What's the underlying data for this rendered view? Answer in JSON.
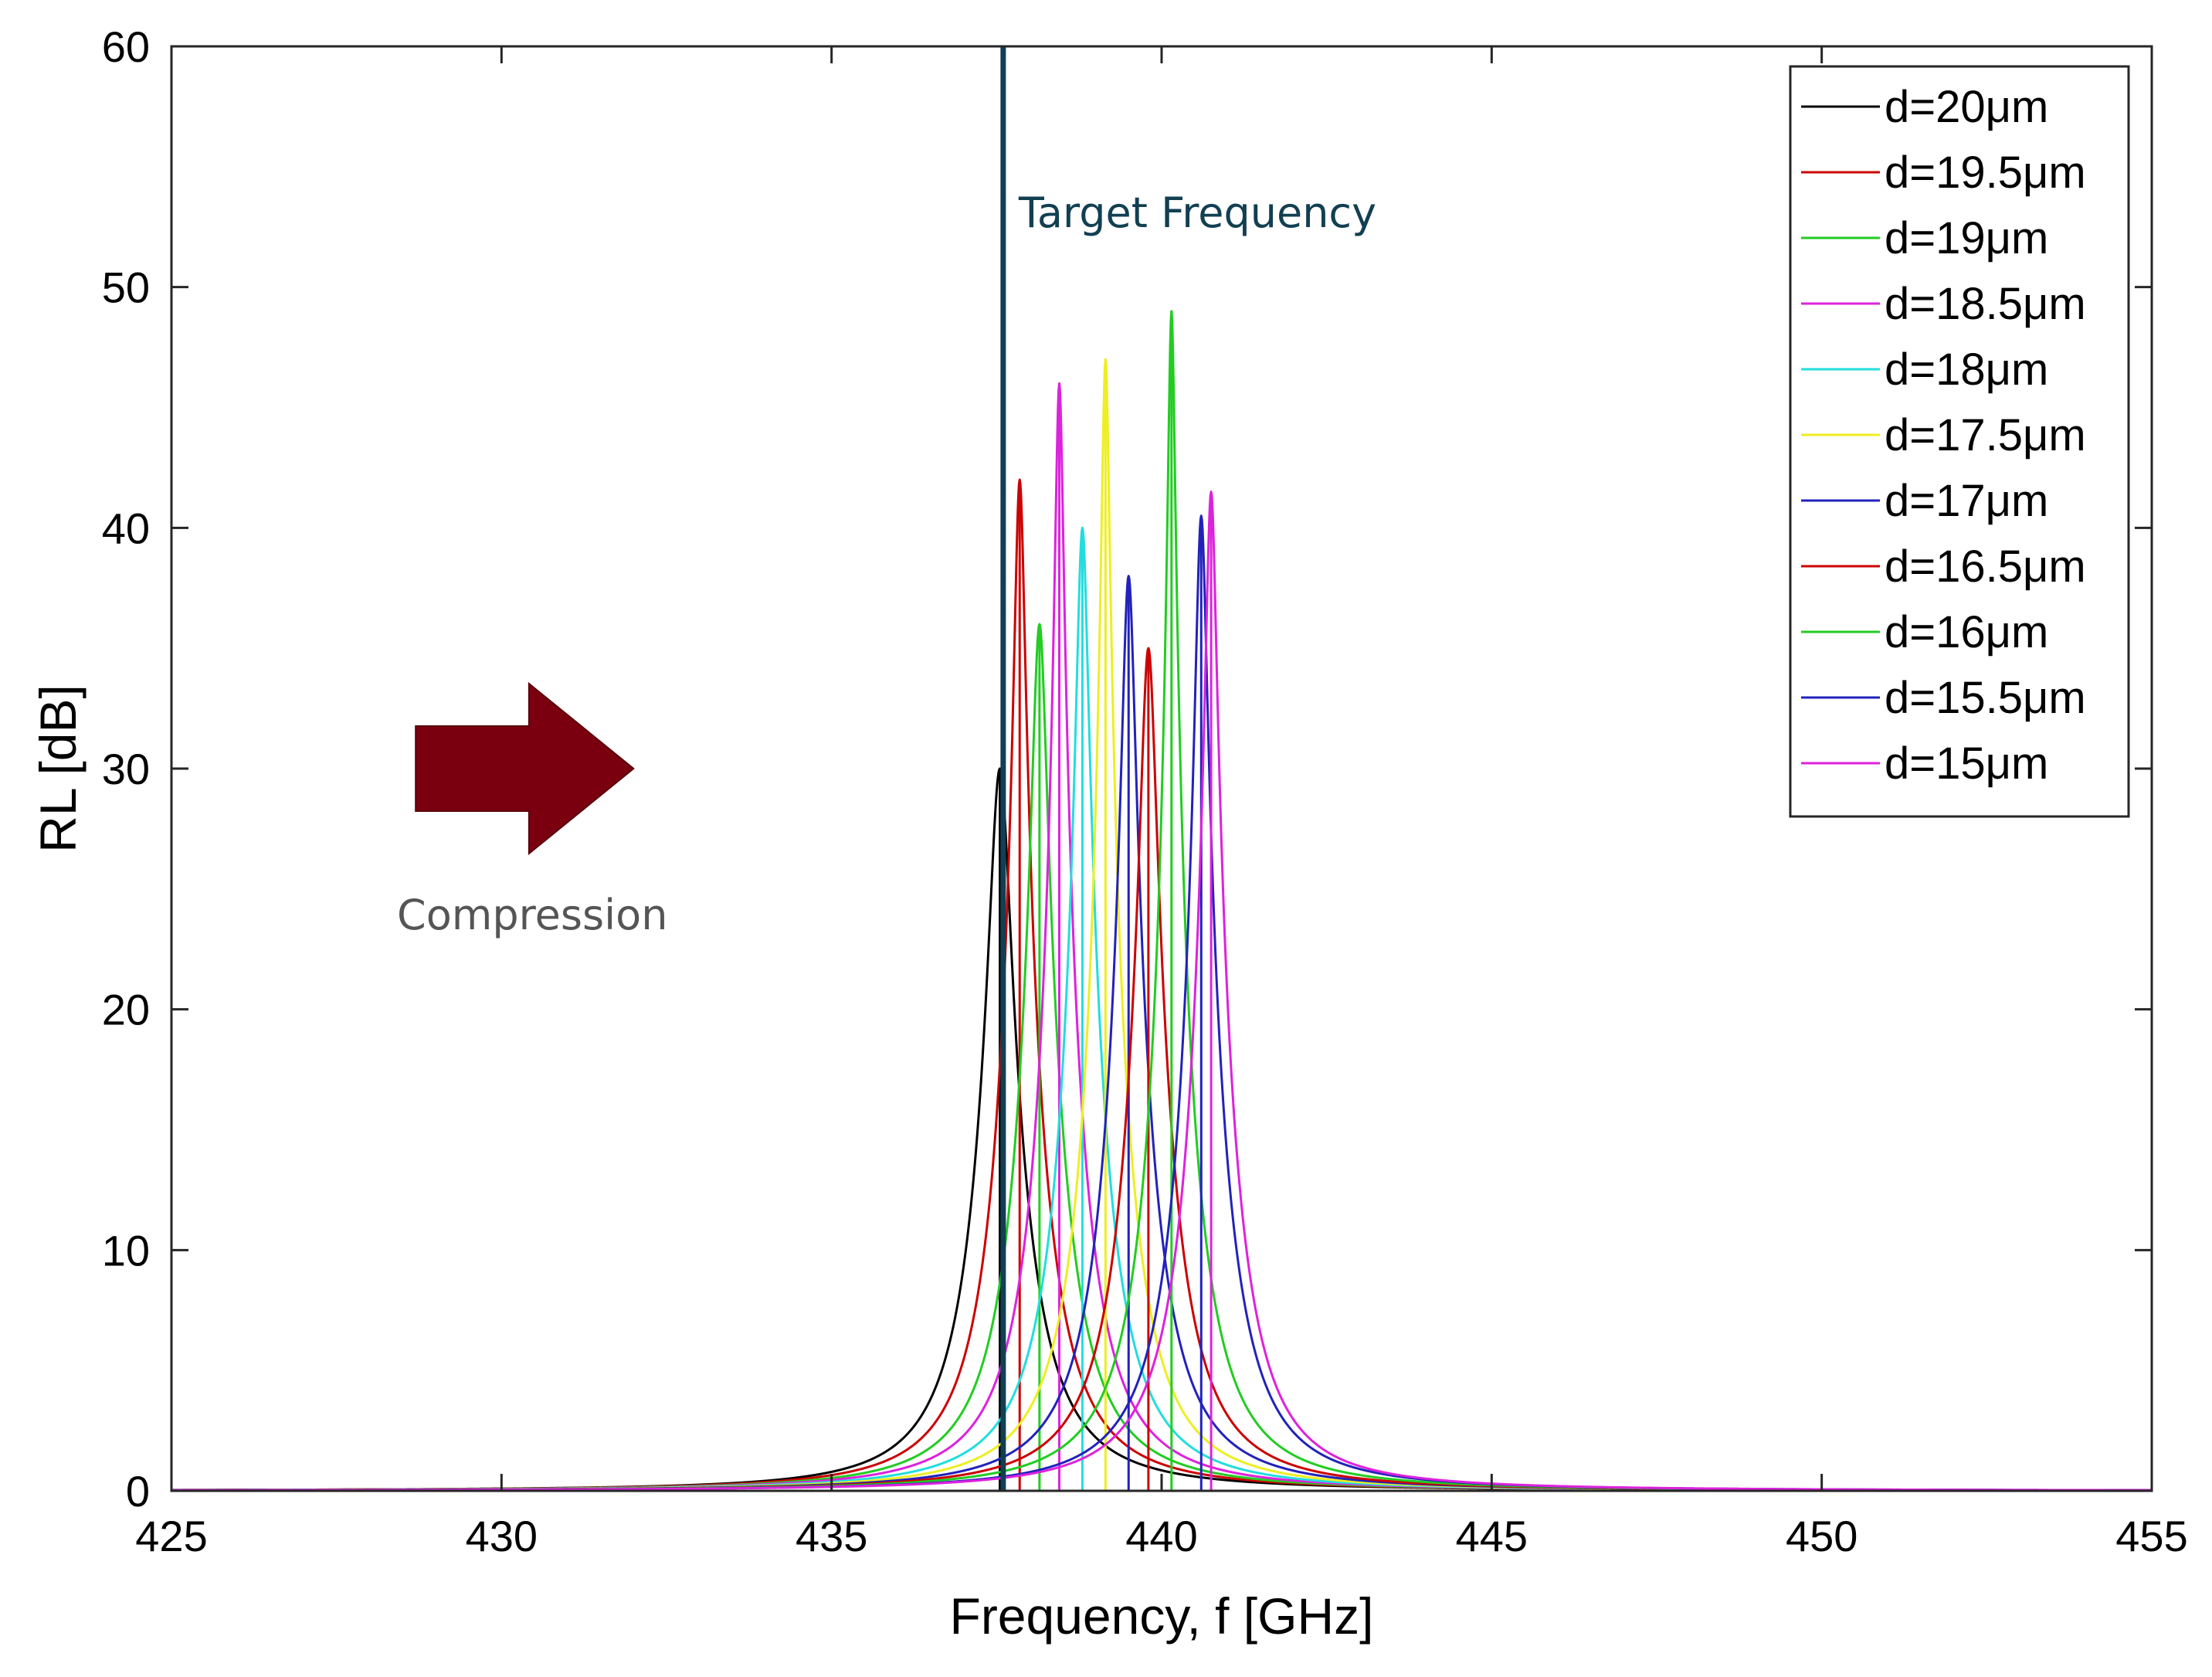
{
  "chart_data": {
    "type": "line",
    "title": "",
    "xlabel": "Frequency, f [GHz]",
    "ylabel": "RL [dB]",
    "xlim": [
      425,
      455
    ],
    "ylim": [
      0,
      60
    ],
    "xticks": [
      425,
      430,
      435,
      440,
      445,
      450,
      455
    ],
    "yticks": [
      0,
      10,
      20,
      30,
      40,
      50,
      60
    ],
    "grid": false,
    "legend_position": "top-right",
    "series": [
      {
        "name": "d=20μm",
        "color": "#000000",
        "peak_freq": 437.55,
        "peak_rl": 30.0
      },
      {
        "name": "d=19.5μm",
        "color": "#cc0000",
        "peak_freq": 437.85,
        "peak_rl": 42.0
      },
      {
        "name": "d=19μm",
        "color": "#22cc22",
        "peak_freq": 438.15,
        "peak_rl": 36.0
      },
      {
        "name": "d=18.5μm",
        "color": "#dd22dd",
        "peak_freq": 438.45,
        "peak_rl": 46.0
      },
      {
        "name": "d=18μm",
        "color": "#22dddd",
        "peak_freq": 438.8,
        "peak_rl": 40.0
      },
      {
        "name": "d=17.5μm",
        "color": "#eeee22",
        "peak_freq": 439.15,
        "peak_rl": 47.0
      },
      {
        "name": "d=17μm",
        "color": "#2222bb",
        "peak_freq": 439.5,
        "peak_rl": 38.0
      },
      {
        "name": "d=16.5μm",
        "color": "#cc0000",
        "peak_freq": 439.8,
        "peak_rl": 35.0
      },
      {
        "name": "d=16μm",
        "color": "#22cc22",
        "peak_freq": 440.15,
        "peak_rl": 49.0
      },
      {
        "name": "d=15.5μm",
        "color": "#2222bb",
        "peak_freq": 440.6,
        "peak_rl": 40.5
      },
      {
        "name": "d=15μm",
        "color": "#dd22dd",
        "peak_freq": 440.75,
        "peak_rl": 41.5
      }
    ],
    "target_frequency": {
      "value": 437.6,
      "label": "Target Frequency",
      "color": "#123f52"
    },
    "compression_annotation": {
      "label": "Compression",
      "arrow_color": "#7a0010",
      "x_from": 428.7,
      "x_to": 432.0,
      "y": 30
    }
  }
}
